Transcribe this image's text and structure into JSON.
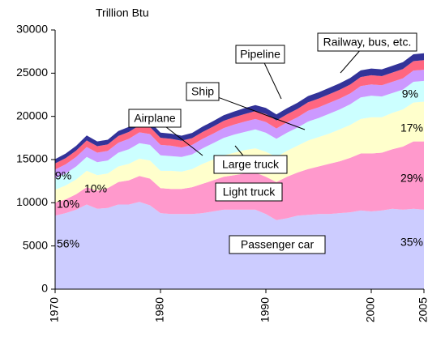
{
  "chart_data": {
    "type": "stacked-area",
    "y_axis_label": "Trillion Btu",
    "x": [
      1970,
      1971,
      1972,
      1973,
      1974,
      1975,
      1976,
      1977,
      1978,
      1979,
      1980,
      1981,
      1982,
      1983,
      1984,
      1985,
      1986,
      1987,
      1988,
      1989,
      1990,
      1991,
      1992,
      1993,
      1994,
      1995,
      1996,
      1997,
      1998,
      1999,
      2000,
      2001,
      2002,
      2003,
      2004,
      2005
    ],
    "series": [
      {
        "name": "Passenger car",
        "color": "#ccccff",
        "values": [
          8500,
          8800,
          9200,
          9800,
          9300,
          9400,
          9800,
          9800,
          10100,
          9700,
          8800,
          8700,
          8700,
          8700,
          8800,
          9000,
          9200,
          9200,
          9200,
          9200,
          8700,
          8000,
          8200,
          8500,
          8600,
          8700,
          8700,
          8800,
          8900,
          9100,
          9000,
          9100,
          9300,
          9200,
          9300,
          9200
        ]
      },
      {
        "name": "Light truck",
        "color": "#ff99cc",
        "values": [
          1500,
          1600,
          1800,
          2000,
          2100,
          2300,
          2600,
          2800,
          3000,
          3100,
          2900,
          2900,
          2900,
          3100,
          3400,
          3600,
          3800,
          4000,
          4200,
          4300,
          4300,
          4400,
          4800,
          5000,
          5300,
          5500,
          5800,
          6000,
          6300,
          6600,
          6700,
          6700,
          6900,
          7300,
          7800,
          7900
        ]
      },
      {
        "name": "Large truck",
        "color": "#ffffcc",
        "values": [
          1500,
          1600,
          1700,
          1900,
          1800,
          1700,
          1800,
          1900,
          2000,
          2100,
          2000,
          2100,
          2000,
          2100,
          2300,
          2400,
          2500,
          2600,
          2700,
          2800,
          2900,
          2900,
          3000,
          3100,
          3300,
          3400,
          3500,
          3700,
          3800,
          4000,
          4200,
          4100,
          4200,
          4300,
          4500,
          4600
        ]
      },
      {
        "name": "Airplane",
        "color": "#ccffff",
        "values": [
          1350,
          1400,
          1500,
          1600,
          1500,
          1500,
          1600,
          1700,
          1800,
          1800,
          1800,
          1700,
          1700,
          1700,
          1800,
          1900,
          2000,
          2100,
          2100,
          2200,
          2200,
          2100,
          2100,
          2100,
          2200,
          2200,
          2300,
          2300,
          2400,
          2500,
          2500,
          2400,
          2300,
          2300,
          2400,
          2400
        ]
      },
      {
        "name": "Ship",
        "color": "#cc99ff",
        "values": [
          1000,
          1050,
          1100,
          1150,
          1100,
          1100,
          1150,
          1200,
          1250,
          1250,
          1200,
          1200,
          1100,
          1100,
          1100,
          1100,
          1150,
          1150,
          1200,
          1200,
          1250,
          1200,
          1200,
          1200,
          1250,
          1250,
          1250,
          1250,
          1250,
          1300,
          1300,
          1300,
          1300,
          1300,
          1300,
          1300
        ]
      },
      {
        "name": "Pipeline",
        "color": "#ff6680",
        "values": [
          700,
          720,
          740,
          760,
          750,
          750,
          780,
          800,
          820,
          830,
          820,
          800,
          780,
          780,
          800,
          820,
          840,
          860,
          880,
          900,
          920,
          920,
          940,
          960,
          980,
          1000,
          1010,
          1020,
          1030,
          1050,
          1060,
          1060,
          1070,
          1080,
          1090,
          1100
        ]
      },
      {
        "name": "Railway, bus, etc.",
        "color": "#333399",
        "values": [
          500,
          520,
          550,
          570,
          550,
          550,
          570,
          590,
          610,
          620,
          600,
          600,
          590,
          600,
          620,
          630,
          640,
          660,
          680,
          700,
          700,
          700,
          700,
          710,
          720,
          730,
          740,
          750,
          760,
          770,
          780,
          780,
          790,
          790,
          800,
          800
        ]
      }
    ],
    "annotations": [
      "56%",
      "10%",
      "10%",
      "9%",
      "35%",
      "29%",
      "17%",
      "9%"
    ],
    "xlim": [
      1970,
      2005
    ],
    "xticks": [
      1970,
      1980,
      1990,
      2000,
      2005
    ],
    "ylim": [
      0,
      30000
    ],
    "yticks": [
      0,
      5000,
      10000,
      15000,
      20000,
      25000,
      30000
    ]
  }
}
